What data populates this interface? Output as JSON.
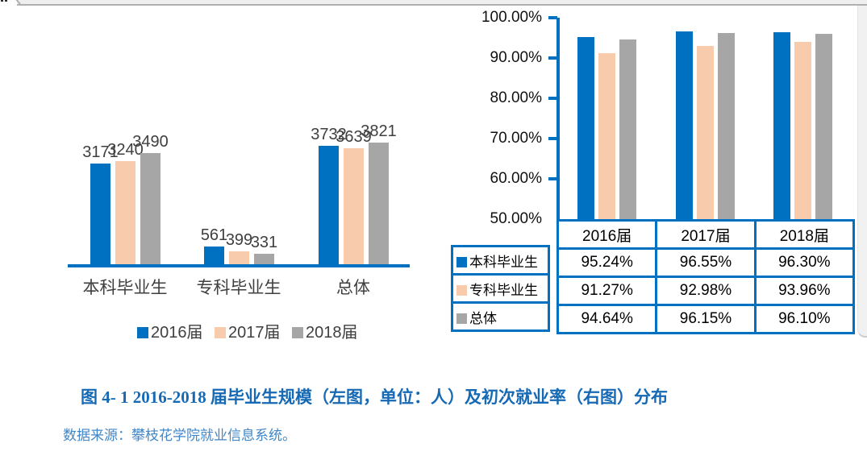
{
  "colors": {
    "blue": "#0070C0",
    "peach": "#F8CBAD",
    "gray": "#A6A6A6",
    "table_border": "#0070C0",
    "caption_blue": "#1669B4",
    "source_blue": "#4186C6",
    "label_dark": "#3F3F3F"
  },
  "chart_data": [
    {
      "id": "graduates-count",
      "type": "bar",
      "title": "",
      "xlabel": "",
      "ylabel": "",
      "categories": [
        "本科毕业生",
        "专科毕业生",
        "总体"
      ],
      "series": [
        {
          "name": "2016届",
          "color": "#0070C0",
          "values": [
            3171,
            561,
            3732
          ]
        },
        {
          "name": "2017届",
          "color": "#F8CBAD",
          "values": [
            3240,
            399,
            3639
          ]
        },
        {
          "name": "2018届",
          "color": "#A6A6A6",
          "values": [
            3490,
            331,
            3821
          ]
        }
      ],
      "data_labels": true,
      "legend_position": "bottom",
      "ylim": [
        0,
        3950
      ],
      "grid": false,
      "axis_visible": "x-only"
    },
    {
      "id": "employment-rate",
      "type": "bar",
      "title": "",
      "xlabel": "",
      "ylabel": "",
      "categories": [
        "2016届",
        "2017届",
        "2018届"
      ],
      "series": [
        {
          "name": "本科毕业生",
          "color": "#0070C0",
          "values": [
            95.24,
            96.55,
            96.3
          ]
        },
        {
          "name": "专科毕业生",
          "color": "#F8CBAD",
          "values": [
            91.27,
            92.98,
            93.96
          ]
        },
        {
          "name": "总体",
          "color": "#A6A6A6",
          "values": [
            94.64,
            96.15,
            96.1
          ]
        }
      ],
      "ytick_labels": [
        "100.00%",
        "90.00%",
        "80.00%",
        "70.00%",
        "60.00%",
        "50.00%"
      ],
      "ylim": [
        50,
        100
      ],
      "grid": false,
      "legend_position": "table-left",
      "data_table": {
        "header": [
          "2016届",
          "2017届",
          "2018届"
        ],
        "rows": [
          {
            "label": "本科毕业生",
            "color": "#0070C0",
            "cells": [
              "95.24%",
              "96.55%",
              "96.30%"
            ]
          },
          {
            "label": "专科毕业生",
            "color": "#F8CBAD",
            "cells": [
              "91.27%",
              "92.98%",
              "93.96%"
            ]
          },
          {
            "label": "总体",
            "color": "#A6A6A6",
            "cells": [
              "94.64%",
              "96.15%",
              "96.10%"
            ]
          }
        ]
      }
    }
  ],
  "caption": {
    "text": "图 4- 1  2016-2018 届毕业生规模（左图，单位：人）及初次就业率（右图）分布"
  },
  "source": {
    "text": "数据来源：攀枝花学院就业信息系统。"
  }
}
